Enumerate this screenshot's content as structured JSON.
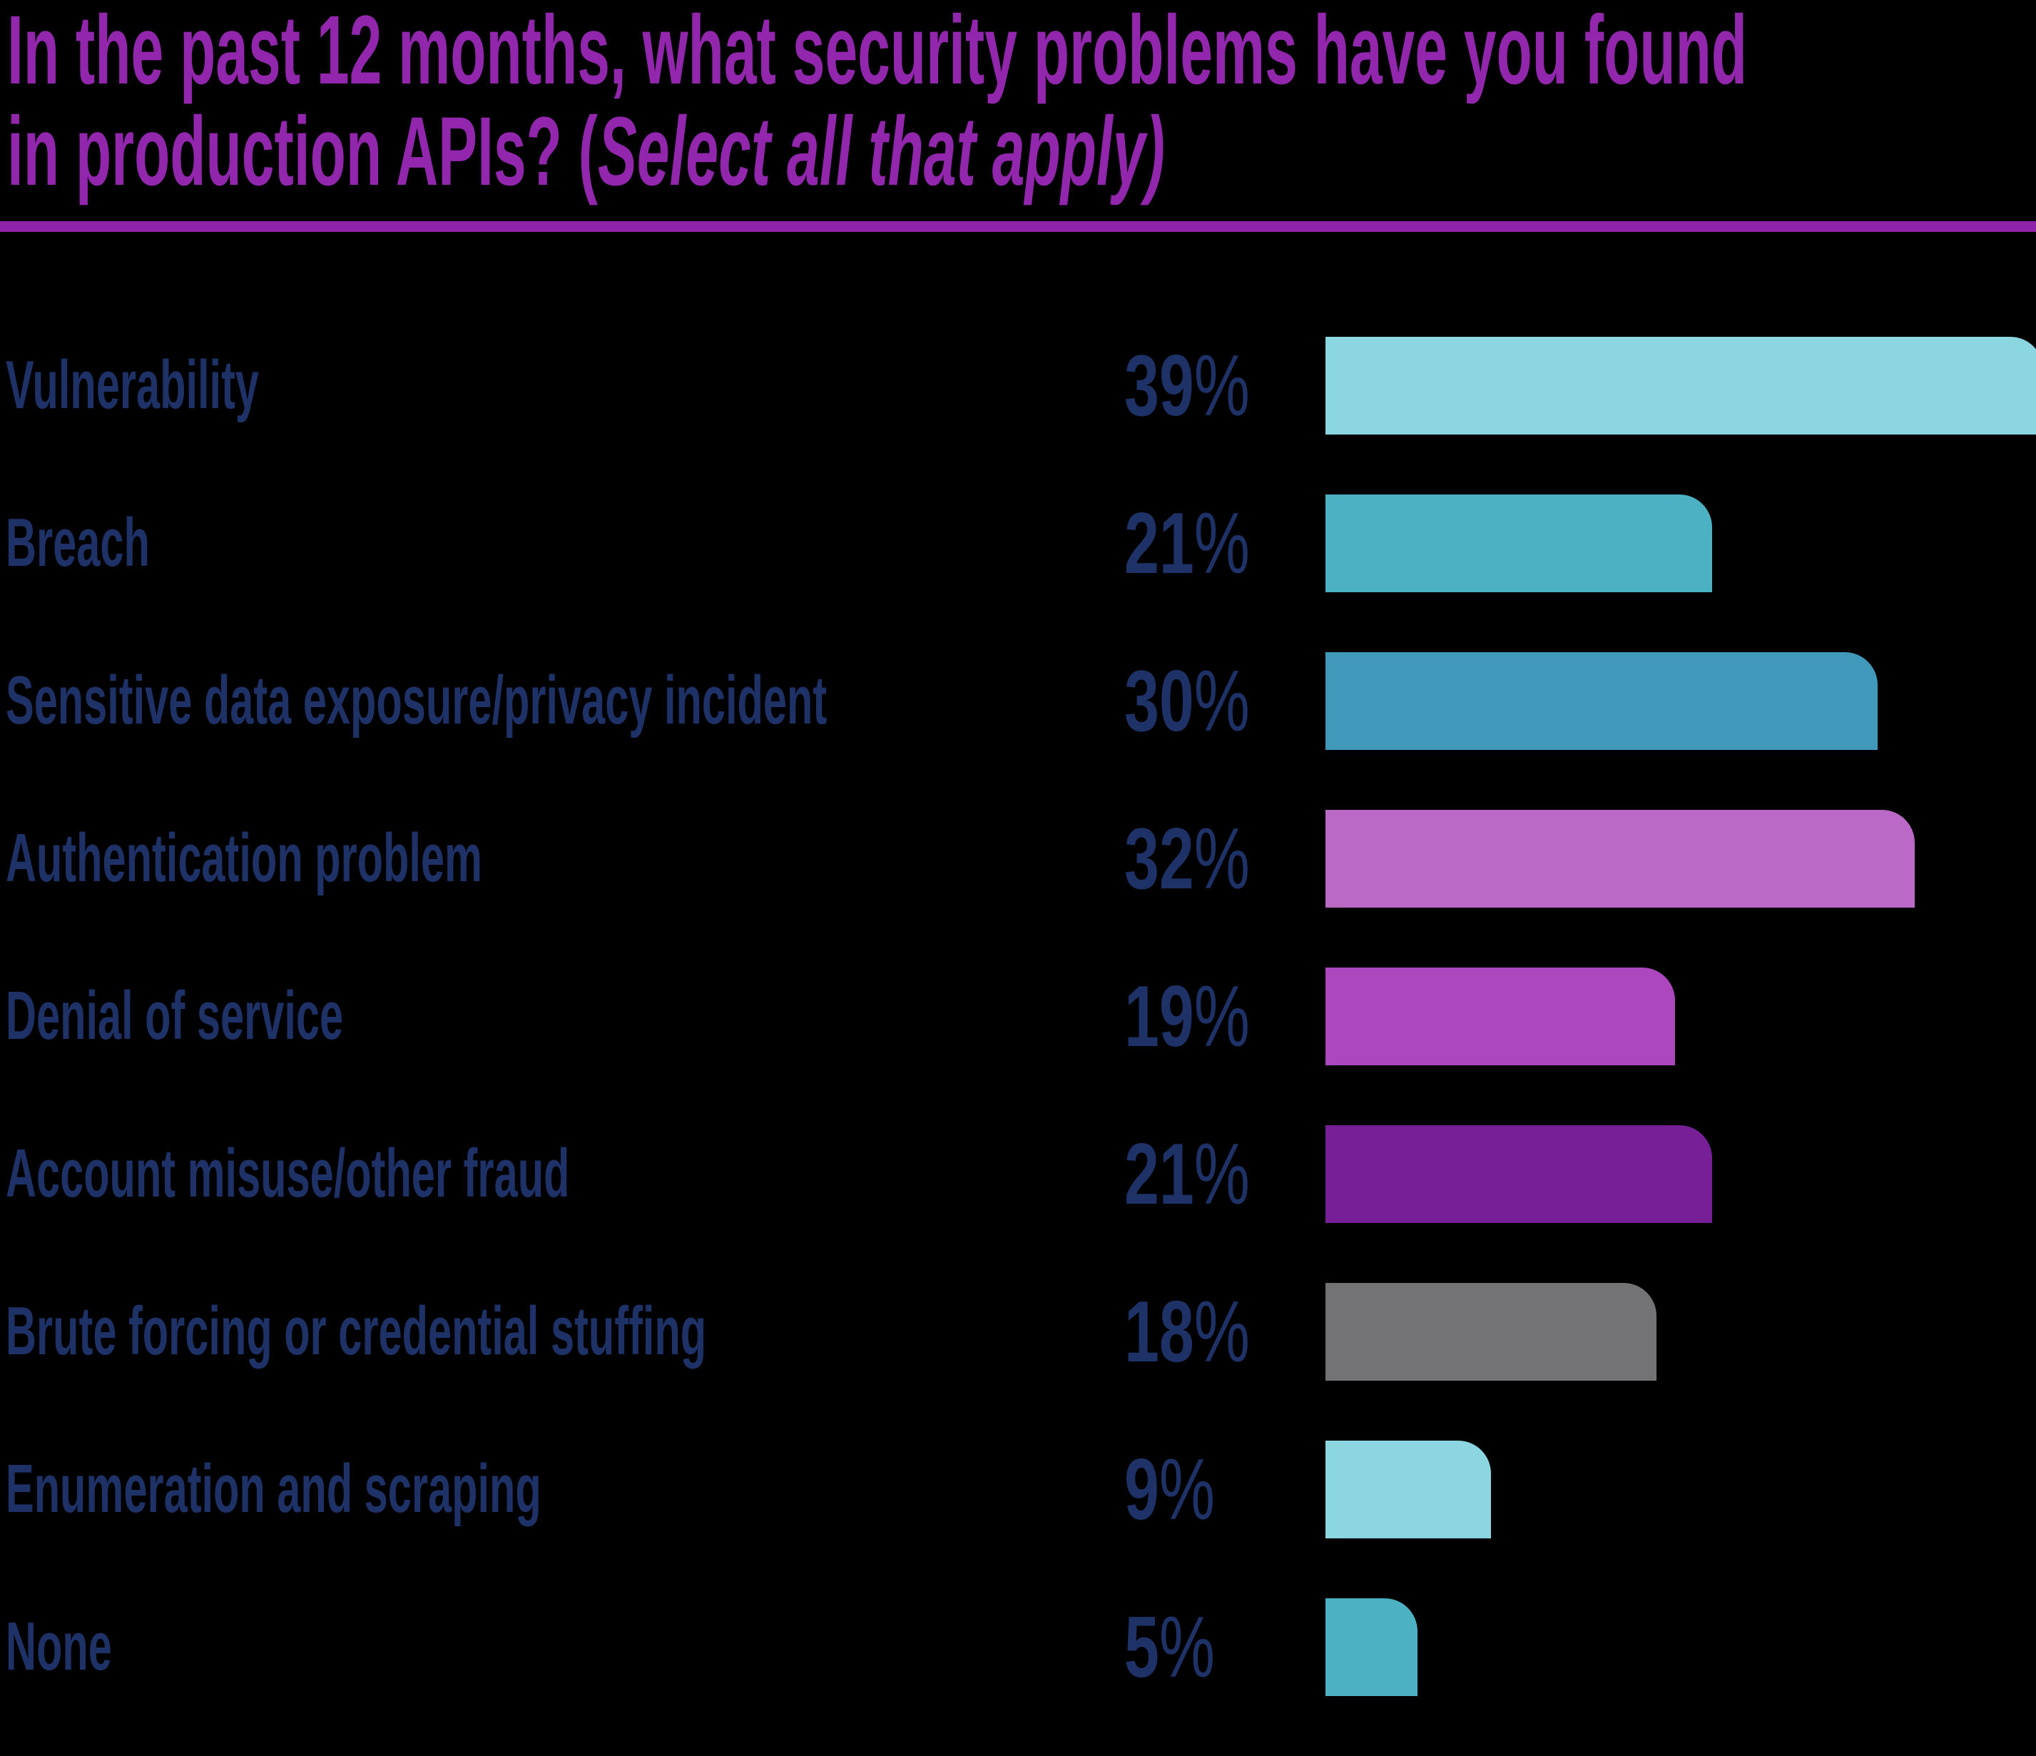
{
  "header": {
    "title_line1": "In the past 12 months, what security problems have you found",
    "title_line2_regular": "in production APIs? (",
    "title_line2_italic": "Select all that apply)",
    "title_color": "#9227AE",
    "divider_color": "#8E22A8"
  },
  "label_color": "#1E3268",
  "background_color": "#000000",
  "rows": [
    {
      "label": "Vulnerability",
      "value": 39,
      "value_label": "39",
      "percent_sign": "%",
      "color": "#8BD6E1"
    },
    {
      "label": "Breach",
      "value": 21,
      "value_label": "21",
      "percent_sign": "%",
      "color": "#4BB1C3"
    },
    {
      "label": "Sensitive data exposure/privacy incident",
      "value": 30,
      "value_label": "30",
      "percent_sign": "%",
      "color": "#4099BA"
    },
    {
      "label": "Authentication problem",
      "value": 32,
      "value_label": "32",
      "percent_sign": "%",
      "color": "#BA69C7"
    },
    {
      "label": "Denial of service",
      "value": 19,
      "value_label": "19",
      "percent_sign": "%",
      "color": "#AC47BE"
    },
    {
      "label": "Account misuse/other fraud",
      "value": 21,
      "value_label": "21",
      "percent_sign": "%",
      "color": "#761F96"
    },
    {
      "label": "Brute forcing or credential stuffing",
      "value": 18,
      "value_label": "18",
      "percent_sign": "%",
      "color": "#737376"
    },
    {
      "label": "Enumeration and scraping",
      "value": 9,
      "value_label": "9",
      "percent_sign": "%",
      "color": "#8BD6E1"
    },
    {
      "label": "None",
      "value": 5,
      "value_label": "5",
      "percent_sign": "%",
      "color": "#4BB1C3"
    }
  ],
  "chart_data": {
    "type": "bar",
    "orientation": "horizontal",
    "title": "In the past 12 months, what security problems have you found in production APIs? (Select all that apply)",
    "categories": [
      "Vulnerability",
      "Breach",
      "Sensitive data exposure/privacy incident",
      "Authentication problem",
      "Denial of service",
      "Account misuse/other fraud",
      "Brute forcing or credential stuffing",
      "Enumeration and scraping",
      "None"
    ],
    "values": [
      39,
      21,
      30,
      32,
      19,
      21,
      18,
      9,
      5
    ],
    "value_labels": [
      "39%",
      "21%",
      "30%",
      "32%",
      "19%",
      "21%",
      "18%",
      "9%",
      "5%"
    ],
    "bar_colors": [
      "#8BD6E1",
      "#4BB1C3",
      "#4099BA",
      "#BA69C7",
      "#AC47BE",
      "#761F96",
      "#737376",
      "#8BD6E1",
      "#4BB1C3"
    ],
    "xlabel": "",
    "ylabel": "",
    "xlim": [
      0,
      39
    ],
    "grid": false,
    "legend": false,
    "value_label_position": "left-of-bar"
  }
}
